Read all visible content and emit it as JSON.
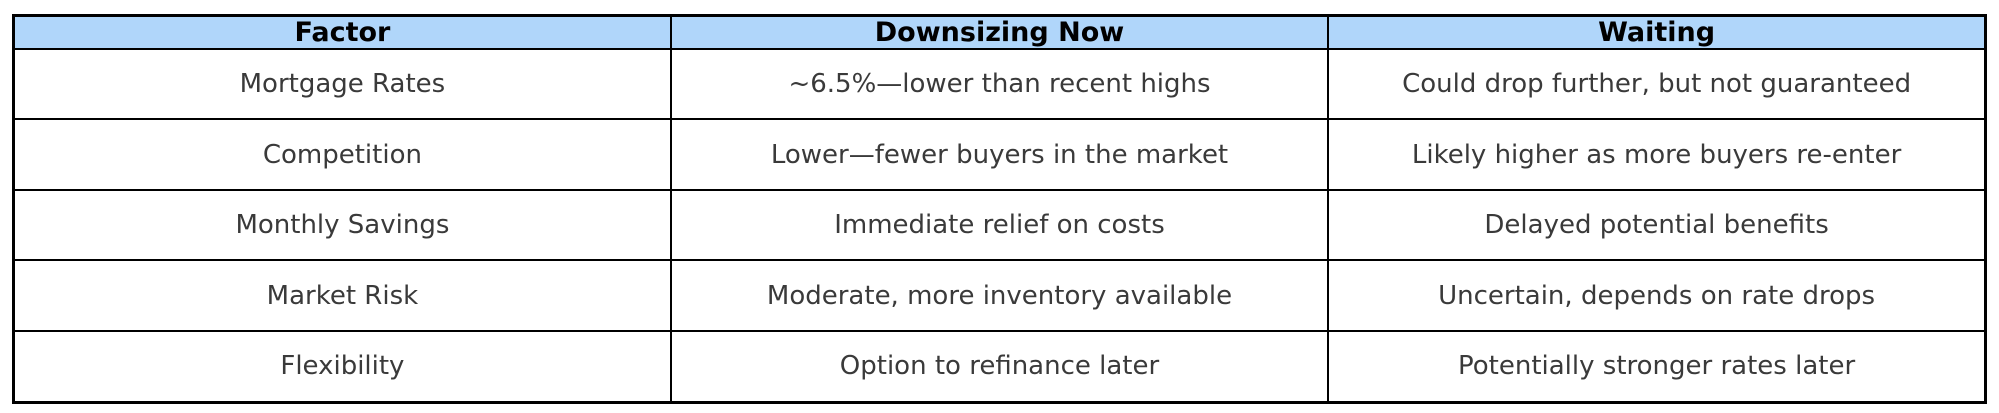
{
  "table": {
    "headers": [
      "Factor",
      "Downsizing Now",
      "Waiting"
    ],
    "rows": [
      [
        "Mortgage Rates",
        "~6.5%—lower than recent highs",
        "Could drop further, but not guaranteed"
      ],
      [
        "Competition",
        "Lower—fewer buyers in the market",
        "Likely higher as more buyers re-enter"
      ],
      [
        "Monthly Savings",
        "Immediate relief on costs",
        "Delayed potential benefits"
      ],
      [
        "Market Risk",
        "Moderate, more inventory available",
        "Uncertain, depends on rate drops"
      ],
      [
        "Flexibility",
        "Option to refinance later",
        "Potentially stronger rates later"
      ]
    ]
  },
  "colors": {
    "header_bg": "#b0d6fa",
    "grid_border": "#000000",
    "header_text": "#000000",
    "body_text": "#3a3a3a"
  },
  "chart_data": {
    "type": "table",
    "title": "",
    "columns": [
      "Factor",
      "Downsizing Now",
      "Waiting"
    ],
    "rows": [
      {
        "factor": "Mortgage Rates",
        "downsizing_now": "~6.5%—lower than recent highs",
        "waiting": "Could drop further, but not guaranteed"
      },
      {
        "factor": "Competition",
        "downsizing_now": "Lower—fewer buyers in the market",
        "waiting": "Likely higher as more buyers re-enter"
      },
      {
        "factor": "Monthly Savings",
        "downsizing_now": "Immediate relief on costs",
        "waiting": "Delayed potential benefits"
      },
      {
        "factor": "Market Risk",
        "downsizing_now": "Moderate, more inventory available",
        "waiting": "Uncertain, depends on rate drops"
      },
      {
        "factor": "Flexibility",
        "downsizing_now": "Option to refinance later",
        "waiting": "Potentially stronger rates later"
      }
    ],
    "layout": {
      "header_fill": "#b0d6fa",
      "grid": true,
      "text_align": "center"
    }
  }
}
